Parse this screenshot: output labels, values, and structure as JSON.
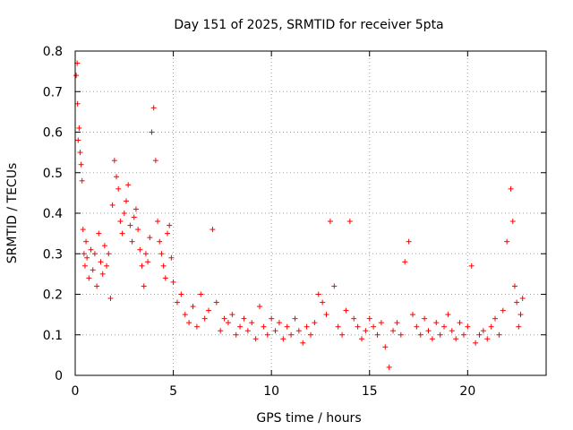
{
  "chart_data": {
    "type": "scatter",
    "title": "Day 151 of 2025, SRMTID for receiver 5pta",
    "xlabel": "GPS time / hours",
    "ylabel": "SRMTID / TECUs",
    "xlim": [
      0,
      24
    ],
    "ylim": [
      0,
      0.8
    ],
    "x_ticks": [
      "0",
      "5",
      "10",
      "15",
      "20"
    ],
    "x_tick_values": [
      0,
      5,
      10,
      15,
      20
    ],
    "y_ticks": [
      "0",
      "0.1",
      "0.2",
      "0.3",
      "0.4",
      "0.5",
      "0.6",
      "0.7",
      "0.8"
    ],
    "y_tick_values": [
      0,
      0.1,
      0.2,
      0.3,
      0.4,
      0.5,
      0.6,
      0.7,
      0.8
    ],
    "grid": true,
    "marker": "plus",
    "color": "#ff0000",
    "series": [
      {
        "name": "SRMTID",
        "points": [
          [
            0.05,
            0.74
          ],
          [
            0.1,
            0.77
          ],
          [
            0.12,
            0.67
          ],
          [
            0.15,
            0.58
          ],
          [
            0.2,
            0.61
          ],
          [
            0.25,
            0.55
          ],
          [
            0.3,
            0.52
          ],
          [
            0.35,
            0.48
          ],
          [
            0.4,
            0.36
          ],
          [
            0.45,
            0.3
          ],
          [
            0.5,
            0.27
          ],
          [
            0.55,
            0.33
          ],
          [
            0.6,
            0.29
          ],
          [
            0.7,
            0.24
          ],
          [
            0.8,
            0.31
          ],
          [
            0.9,
            0.26
          ],
          [
            1.0,
            0.3
          ],
          [
            1.1,
            0.22
          ],
          [
            1.2,
            0.35
          ],
          [
            1.3,
            0.28
          ],
          [
            1.4,
            0.25
          ],
          [
            1.5,
            0.32
          ],
          [
            1.6,
            0.27
          ],
          [
            1.7,
            0.3
          ],
          [
            1.8,
            0.19
          ],
          [
            1.9,
            0.42
          ],
          [
            2.0,
            0.53
          ],
          [
            2.1,
            0.49
          ],
          [
            2.2,
            0.46
          ],
          [
            2.3,
            0.38
          ],
          [
            2.4,
            0.35
          ],
          [
            2.5,
            0.4
          ],
          [
            2.6,
            0.43
          ],
          [
            2.7,
            0.47
          ],
          [
            2.8,
            0.37
          ],
          [
            2.9,
            0.33
          ],
          [
            3.0,
            0.39
          ],
          [
            3.1,
            0.41
          ],
          [
            3.2,
            0.36
          ],
          [
            3.3,
            0.31
          ],
          [
            3.4,
            0.27
          ],
          [
            3.5,
            0.22
          ],
          [
            3.6,
            0.3
          ],
          [
            3.7,
            0.28
          ],
          [
            3.8,
            0.34
          ],
          [
            3.9,
            0.6
          ],
          [
            4.0,
            0.66
          ],
          [
            4.1,
            0.53
          ],
          [
            4.2,
            0.38
          ],
          [
            4.3,
            0.33
          ],
          [
            4.4,
            0.3
          ],
          [
            4.5,
            0.27
          ],
          [
            4.6,
            0.24
          ],
          [
            4.7,
            0.35
          ],
          [
            4.8,
            0.37
          ],
          [
            4.9,
            0.29
          ],
          [
            5.0,
            0.23
          ],
          [
            5.2,
            0.18
          ],
          [
            5.4,
            0.2
          ],
          [
            5.6,
            0.15
          ],
          [
            5.8,
            0.13
          ],
          [
            6.0,
            0.17
          ],
          [
            6.2,
            0.12
          ],
          [
            6.4,
            0.2
          ],
          [
            6.6,
            0.14
          ],
          [
            6.8,
            0.16
          ],
          [
            7.0,
            0.36
          ],
          [
            7.2,
            0.18
          ],
          [
            7.4,
            0.11
          ],
          [
            7.6,
            0.14
          ],
          [
            7.8,
            0.13
          ],
          [
            8.0,
            0.15
          ],
          [
            8.2,
            0.1
          ],
          [
            8.4,
            0.12
          ],
          [
            8.6,
            0.14
          ],
          [
            8.8,
            0.11
          ],
          [
            9.0,
            0.13
          ],
          [
            9.2,
            0.09
          ],
          [
            9.4,
            0.17
          ],
          [
            9.6,
            0.12
          ],
          [
            9.8,
            0.1
          ],
          [
            10.0,
            0.14
          ],
          [
            10.2,
            0.11
          ],
          [
            10.4,
            0.13
          ],
          [
            10.6,
            0.09
          ],
          [
            10.8,
            0.12
          ],
          [
            11.0,
            0.1
          ],
          [
            11.2,
            0.14
          ],
          [
            11.4,
            0.11
          ],
          [
            11.6,
            0.08
          ],
          [
            11.8,
            0.12
          ],
          [
            12.0,
            0.1
          ],
          [
            12.2,
            0.13
          ],
          [
            12.4,
            0.2
          ],
          [
            12.6,
            0.18
          ],
          [
            12.8,
            0.15
          ],
          [
            13.0,
            0.38
          ],
          [
            13.2,
            0.22
          ],
          [
            13.4,
            0.12
          ],
          [
            13.6,
            0.1
          ],
          [
            13.8,
            0.16
          ],
          [
            14.0,
            0.38
          ],
          [
            14.2,
            0.14
          ],
          [
            14.4,
            0.12
          ],
          [
            14.6,
            0.09
          ],
          [
            14.8,
            0.11
          ],
          [
            15.0,
            0.14
          ],
          [
            15.2,
            0.12
          ],
          [
            15.4,
            0.1
          ],
          [
            15.6,
            0.13
          ],
          [
            15.8,
            0.07
          ],
          [
            16.0,
            0.02
          ],
          [
            16.2,
            0.11
          ],
          [
            16.4,
            0.13
          ],
          [
            16.6,
            0.1
          ],
          [
            16.8,
            0.28
          ],
          [
            17.0,
            0.33
          ],
          [
            17.2,
            0.15
          ],
          [
            17.4,
            0.12
          ],
          [
            17.6,
            0.1
          ],
          [
            17.8,
            0.14
          ],
          [
            18.0,
            0.11
          ],
          [
            18.2,
            0.09
          ],
          [
            18.4,
            0.13
          ],
          [
            18.6,
            0.1
          ],
          [
            18.8,
            0.12
          ],
          [
            19.0,
            0.15
          ],
          [
            19.2,
            0.11
          ],
          [
            19.4,
            0.09
          ],
          [
            19.6,
            0.13
          ],
          [
            19.8,
            0.1
          ],
          [
            20.0,
            0.12
          ],
          [
            20.2,
            0.27
          ],
          [
            20.4,
            0.08
          ],
          [
            20.6,
            0.1
          ],
          [
            20.8,
            0.11
          ],
          [
            21.0,
            0.09
          ],
          [
            21.2,
            0.12
          ],
          [
            21.4,
            0.14
          ],
          [
            21.6,
            0.1
          ],
          [
            21.8,
            0.16
          ],
          [
            22.0,
            0.33
          ],
          [
            22.2,
            0.46
          ],
          [
            22.3,
            0.38
          ],
          [
            22.4,
            0.22
          ],
          [
            22.5,
            0.18
          ],
          [
            22.6,
            0.12
          ],
          [
            22.7,
            0.15
          ],
          [
            22.8,
            0.19
          ]
        ]
      }
    ]
  }
}
